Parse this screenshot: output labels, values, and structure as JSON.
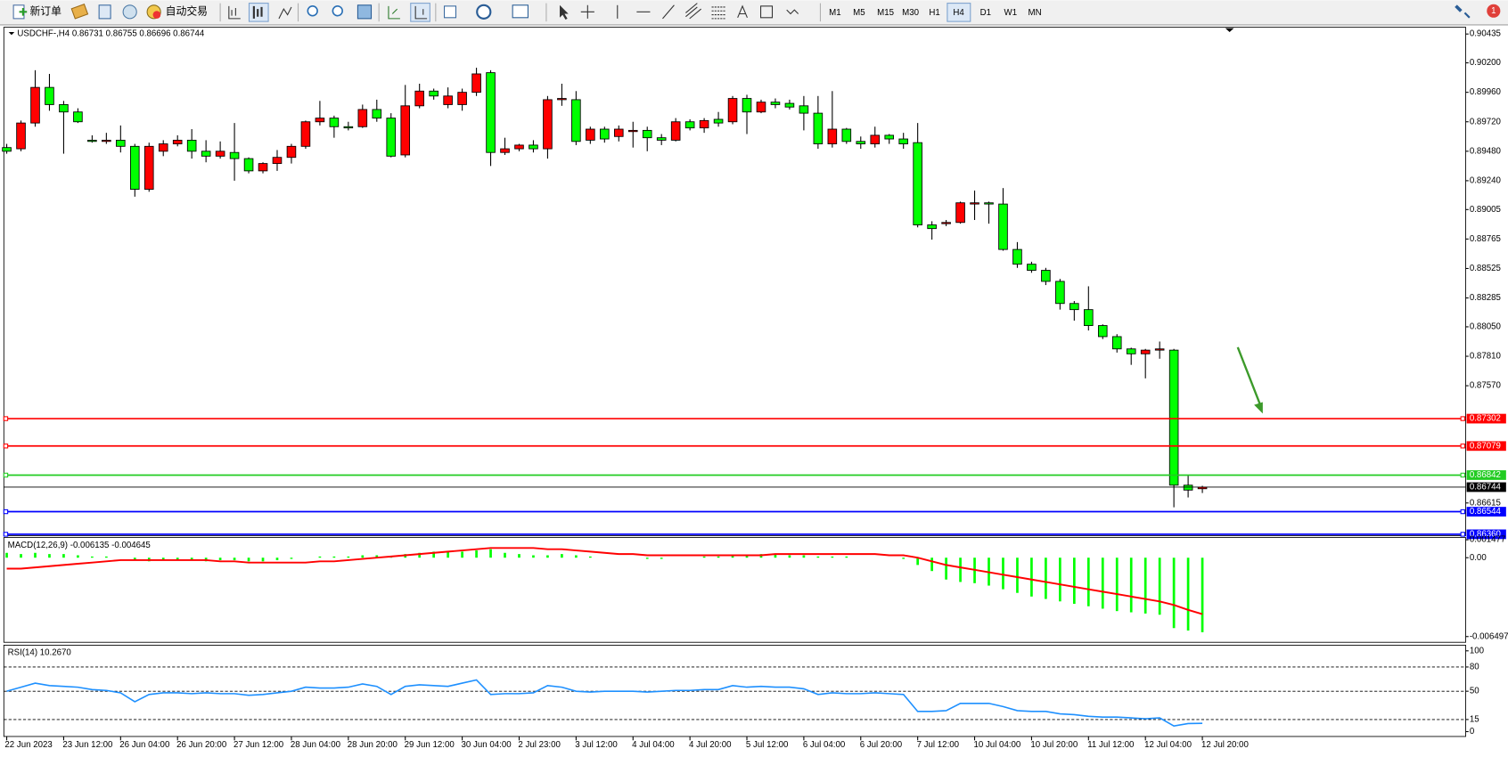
{
  "toolbar": {
    "new_order": "新订单",
    "auto_trading": "自动交易",
    "timeframes": [
      "M1",
      "M5",
      "M15",
      "M30",
      "H1",
      "H4",
      "D1",
      "W1",
      "MN"
    ],
    "active_timeframe": "H4",
    "notifications": "1"
  },
  "chart_data": [
    {
      "type": "candlestick",
      "title": "USDCHF-,H4 0.86731 0.86755 0.86696 0.86744",
      "categories": [
        "22 Jun 2023",
        null,
        null,
        null,
        "23 Jun 12:00",
        null,
        null,
        null,
        "26 Jun 04:00",
        null,
        null,
        null,
        "26 Jun 20:00",
        null,
        null,
        null,
        "27 Jun 12:00",
        null,
        null,
        null,
        "28 Jun 04:00",
        null,
        null,
        null,
        "28 Jun 20:00",
        null,
        null,
        null,
        "29 Jun 12:00",
        null,
        null,
        null,
        "30 Jun 04:00",
        null,
        null,
        null,
        "2 Jul 23:00",
        null,
        null,
        null,
        "3 Jul 12:00",
        null,
        null,
        null,
        "4 Jul 04:00",
        null,
        null,
        null,
        "4 Jul 20:00",
        null,
        null,
        null,
        "5 Jul 12:00",
        null,
        null,
        null,
        "6 Jul 04:00",
        null,
        null,
        null,
        "6 Jul 20:00",
        null,
        null,
        null,
        "7 Jul 12:00",
        null,
        null,
        null,
        "10 Jul 04:00",
        null,
        null,
        null,
        "10 Jul 20:00",
        null,
        null,
        null,
        "11 Jul 12:00",
        null,
        null,
        null,
        "12 Jul 04:00",
        null,
        null,
        null,
        "12 Jul 20:00"
      ],
      "open": [
        0.8951,
        0.895,
        0.8971,
        0.9,
        0.8986,
        0.898,
        0.8957,
        0.8956,
        0.8957,
        0.8952,
        0.8917,
        0.8948,
        0.8954,
        0.8957,
        0.8948,
        0.8944,
        0.8947,
        0.8942,
        0.8932,
        0.8938,
        0.8943,
        0.8952,
        0.8972,
        0.8975,
        0.8968,
        0.8968,
        0.8982,
        0.8975,
        0.8945,
        0.8985,
        0.8997,
        0.8986,
        0.8986,
        0.8996,
        0.9012,
        0.8947,
        0.895,
        0.8953,
        0.895,
        0.899,
        0.899,
        0.8957,
        0.8966,
        0.896,
        0.8964,
        0.8965,
        0.8959,
        0.8957,
        0.8972,
        0.8967,
        0.8974,
        0.8972,
        0.8991,
        0.898,
        0.8988,
        0.8987,
        0.8985,
        0.8979,
        0.8954,
        0.8966,
        0.8956,
        0.8954,
        0.8961,
        0.8958,
        0.8955,
        0.8888,
        0.8889,
        0.889,
        0.8905,
        0.8906,
        0.8905,
        0.8868,
        0.8856,
        0.8851,
        0.8842,
        0.8824,
        0.8819,
        0.8806,
        0.8797,
        0.8787,
        0.8783,
        0.8786,
        0.8786,
        0.8676,
        0.86731
      ],
      "high": [
        0.8954,
        0.8973,
        0.9014,
        0.9011,
        0.8989,
        0.8983,
        0.8961,
        0.8963,
        0.8969,
        0.8954,
        0.8955,
        0.8957,
        0.8961,
        0.8966,
        0.8957,
        0.8956,
        0.8971,
        0.8943,
        0.8939,
        0.8949,
        0.8954,
        0.8973,
        0.8989,
        0.8977,
        0.8972,
        0.8986,
        0.899,
        0.8979,
        0.9002,
        0.9003,
        0.8999,
        0.9,
        0.8999,
        0.9016,
        0.9014,
        0.8959,
        0.8954,
        0.8957,
        0.8993,
        0.9003,
        0.8997,
        0.8968,
        0.8968,
        0.8969,
        0.8972,
        0.8968,
        0.8962,
        0.8975,
        0.8974,
        0.8975,
        0.898,
        0.8993,
        0.8994,
        0.899,
        0.8991,
        0.899,
        0.8993,
        0.8993,
        0.8997,
        0.8967,
        0.896,
        0.8968,
        0.8962,
        0.8963,
        0.8971,
        0.8891,
        0.8892,
        0.8907,
        0.8916,
        0.8907,
        0.8918,
        0.8874,
        0.8858,
        0.8853,
        0.8844,
        0.8826,
        0.8838,
        0.8807,
        0.8799,
        0.8788,
        0.8787,
        0.8793,
        0.8787,
        0.8684,
        0.86755
      ],
      "low": [
        0.8946,
        0.8948,
        0.8968,
        0.8981,
        0.8946,
        0.8971,
        0.8955,
        0.8954,
        0.8947,
        0.8911,
        0.8915,
        0.8944,
        0.8952,
        0.8942,
        0.8939,
        0.8942,
        0.8924,
        0.893,
        0.893,
        0.8932,
        0.8938,
        0.895,
        0.8969,
        0.8959,
        0.8965,
        0.8967,
        0.8972,
        0.8943,
        0.8943,
        0.8983,
        0.899,
        0.8983,
        0.8981,
        0.8993,
        0.8936,
        0.8945,
        0.8948,
        0.8947,
        0.8942,
        0.8985,
        0.8953,
        0.8954,
        0.8955,
        0.8956,
        0.8951,
        0.8948,
        0.8953,
        0.8956,
        0.8965,
        0.8963,
        0.8968,
        0.897,
        0.8962,
        0.8979,
        0.8983,
        0.8982,
        0.8965,
        0.895,
        0.8951,
        0.8954,
        0.895,
        0.8951,
        0.8954,
        0.895,
        0.8886,
        0.8876,
        0.8887,
        0.8889,
        0.8892,
        0.8889,
        0.8867,
        0.8853,
        0.8849,
        0.8839,
        0.8819,
        0.881,
        0.8802,
        0.8795,
        0.8784,
        0.8774,
        0.8763,
        0.8779,
        0.8658,
        0.8666,
        0.86696
      ],
      "close": [
        0.8948,
        0.8971,
        0.9,
        0.8986,
        0.898,
        0.8972,
        0.8956,
        0.8957,
        0.8952,
        0.8917,
        0.8952,
        0.8954,
        0.8957,
        0.8948,
        0.8944,
        0.8948,
        0.8942,
        0.8932,
        0.8938,
        0.8943,
        0.8952,
        0.8972,
        0.8975,
        0.8968,
        0.8967,
        0.8982,
        0.8975,
        0.8944,
        0.8985,
        0.8997,
        0.8993,
        0.8993,
        0.8996,
        0.9011,
        0.8947,
        0.895,
        0.8953,
        0.895,
        0.899,
        0.8991,
        0.8956,
        0.8966,
        0.8958,
        0.8966,
        0.8965,
        0.8959,
        0.8957,
        0.8972,
        0.8967,
        0.8973,
        0.8971,
        0.8991,
        0.898,
        0.8988,
        0.8986,
        0.8984,
        0.8979,
        0.8954,
        0.8966,
        0.8956,
        0.8954,
        0.8961,
        0.8958,
        0.8954,
        0.8888,
        0.8885,
        0.889,
        0.8906,
        0.8906,
        0.8905,
        0.8868,
        0.8856,
        0.8851,
        0.8842,
        0.8824,
        0.8819,
        0.8806,
        0.8797,
        0.8787,
        0.8783,
        0.8786,
        0.8787,
        0.8676,
        0.8672,
        0.86744
      ],
      "up_color": "#ff0000",
      "down_color": "#00ff00",
      "ylim": [
        0.86349,
        0.9049
      ],
      "yticks": [
        0.90435,
        {
          "value": 0.902,
          "label": "0.90200"
        },
        {
          "value": 0.8996,
          "label": "0.89960"
        },
        {
          "value": 0.8972,
          "label": "0.89720"
        },
        {
          "value": 0.8948,
          "label": "0.89480"
        },
        {
          "value": 0.8924,
          "label": "0.89240"
        },
        0.89005,
        0.88765,
        0.88525,
        0.88285,
        {
          "value": 0.8805,
          "label": "0.88050"
        },
        {
          "value": 0.8781,
          "label": "0.87810"
        },
        {
          "value": 0.8757,
          "label": "0.87570"
        },
        0.86615
      ],
      "levels": [
        {
          "value": 0.87302,
          "color": "#ff0000"
        },
        {
          "value": 0.87079,
          "color": "#ff0000"
        },
        {
          "value": 0.86842,
          "color": "#22cc22"
        },
        {
          "value": 0.86744,
          "color": "#000000"
        },
        {
          "value": 0.86544,
          "color": "#0000ff"
        },
        {
          "value": 0.8636,
          "label": "0.86360",
          "color": "#0000ff"
        }
      ]
    },
    {
      "type": "macd",
      "title": "MACD(12,26,9) -0.006135 -0.004645",
      "values": [
        0.0004,
        0.0003,
        0.0004,
        0.0003,
        0.0003,
        0.0002,
        0.0001,
        0.0001,
        0.0,
        -0.0002,
        -0.0003,
        -0.0002,
        -0.0002,
        -0.0002,
        -0.0003,
        -0.0002,
        -0.0002,
        -0.0003,
        -0.0003,
        -0.0002,
        -0.0001,
        0.0,
        0.0001,
        0.0001,
        0.0001,
        0.0002,
        0.0002,
        0.0001,
        0.0003,
        0.0004,
        0.0005,
        0.0005,
        0.0005,
        0.0006,
        0.0007,
        0.0004,
        0.0003,
        0.0002,
        0.0002,
        0.0003,
        0.0002,
        0.0001,
        0.0,
        0.0,
        0.0,
        -0.0001,
        -0.0001,
        0.0,
        0.0,
        0.0001,
        0.0001,
        0.0002,
        0.0002,
        0.0003,
        0.0003,
        0.0002,
        0.0002,
        0.0001,
        0.0001,
        0.0001,
        0.0,
        0.0,
        0.0,
        -0.0001,
        -0.0006,
        -0.0011,
        -0.0018,
        -0.002,
        -0.0021,
        -0.0023,
        -0.0026,
        -0.0029,
        -0.0032,
        -0.0034,
        -0.0036,
        -0.0038,
        -0.004,
        -0.0042,
        -0.0044,
        -0.0045,
        -0.0046,
        -0.0047,
        -0.0058,
        -0.006,
        -0.006135
      ],
      "signal": [
        -0.0009,
        -0.0009,
        -0.0008,
        -0.0007,
        -0.0006,
        -0.0005,
        -0.0004,
        -0.0003,
        -0.0002,
        -0.0002,
        -0.0002,
        -0.0002,
        -0.0002,
        -0.0002,
        -0.0002,
        -0.0003,
        -0.0003,
        -0.0004,
        -0.0004,
        -0.0004,
        -0.0004,
        -0.0004,
        -0.0003,
        -0.0003,
        -0.0002,
        -0.0001,
        0.0,
        0.0001,
        0.0002,
        0.0003,
        0.0004,
        0.0005,
        0.0006,
        0.0007,
        0.0008,
        0.0008,
        0.0008,
        0.0008,
        0.0007,
        0.0007,
        0.0006,
        0.0005,
        0.0004,
        0.0003,
        0.0003,
        0.0002,
        0.0002,
        0.0002,
        0.0002,
        0.0002,
        0.0002,
        0.0002,
        0.0002,
        0.0002,
        0.0003,
        0.0003,
        0.0003,
        0.0003,
        0.0003,
        0.0003,
        0.0003,
        0.0003,
        0.0002,
        0.0002,
        0.0,
        -0.0003,
        -0.0006,
        -0.0008,
        -0.001,
        -0.0012,
        -0.0014,
        -0.0016,
        -0.0018,
        -0.002,
        -0.0022,
        -0.0024,
        -0.0026,
        -0.0028,
        -0.003,
        -0.0032,
        -0.0034,
        -0.0036,
        -0.0039,
        -0.0043,
        -0.004645
      ],
      "color": "#00ff00",
      "signal_color": "#ff0000",
      "ylim": [
        -0.00697,
        0.00166
      ],
      "yticks": [
        0.001477,
        {
          "value": 0,
          "label": "0.00"
        },
        -0.006497
      ]
    },
    {
      "type": "line",
      "title": "RSI(14) 10.2670",
      "values": [
        50,
        55,
        60,
        57,
        56,
        55,
        52,
        51,
        48,
        37,
        46,
        48,
        48,
        47,
        48,
        47,
        47,
        45,
        46,
        48,
        50,
        55,
        54,
        54,
        55,
        59,
        56,
        46,
        56,
        58,
        57,
        56,
        60,
        64,
        46,
        47,
        47,
        48,
        57,
        55,
        50,
        49,
        50,
        50,
        50,
        49,
        50,
        51,
        51,
        52,
        52,
        57,
        55,
        56,
        55,
        55,
        53,
        46,
        48,
        47,
        47,
        48,
        47,
        46,
        25,
        25,
        26,
        35,
        35,
        35,
        31,
        26,
        25,
        25,
        22,
        21,
        19,
        18,
        18,
        17,
        16,
        17,
        7,
        10,
        10.267
      ],
      "color": "#1e90ff",
      "ylim": [
        -6,
        107
      ],
      "yticks": [
        100,
        80,
        50,
        15,
        0
      ],
      "levels": [
        80,
        50,
        15
      ]
    }
  ]
}
